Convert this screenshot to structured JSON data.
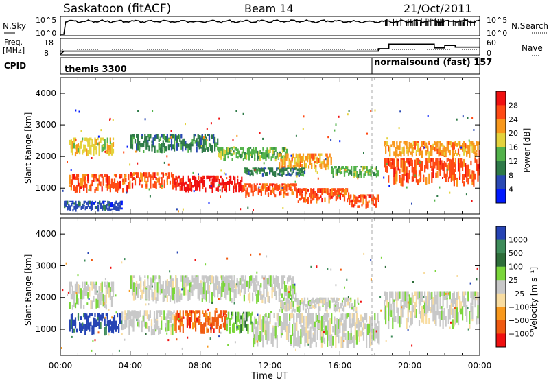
{
  "header": {
    "title": "Saskatoon (fitACF)",
    "beam": "Beam 14",
    "date": "21/Oct/2011"
  },
  "status_panels": {
    "nsky_label": "N.Sky",
    "nsky_ticks": [
      "10^5",
      "10^0"
    ],
    "nsky_right_ticks": [
      "10^5",
      "10^0"
    ],
    "nsearch_label": "N.Search",
    "freq_label_1": "Freq.",
    "freq_label_2": "[MHz]",
    "freq_ticks": [
      "18",
      "8"
    ],
    "nave_ticks": [
      "60",
      "0"
    ],
    "nave_label": "Nave",
    "cpid_label": "CPID",
    "cpid_segments": [
      {
        "name": "themis 3300",
        "start_hour": 0
      },
      {
        "name": "normalsound (fast) 157",
        "start_hour": 18.2
      }
    ],
    "nave_steps": [
      {
        "start": 0,
        "end": 18.2,
        "value": 12
      },
      {
        "start": 18.2,
        "end": 18.8,
        "value": 22
      },
      {
        "start": 18.8,
        "end": 21.4,
        "value": 40
      },
      {
        "start": 21.4,
        "end": 22.0,
        "value": 25
      },
      {
        "start": 22.0,
        "end": 22.6,
        "value": 35
      },
      {
        "start": 22.6,
        "end": 24,
        "value": 28
      }
    ]
  },
  "colors": {
    "power_scale": [
      "#0019ff",
      "#2a49b4",
      "#2e7a48",
      "#52b24a",
      "#e4d23c",
      "#f8981c",
      "#ff4a14",
      "#f01010"
    ],
    "velocity_scale": [
      "#2644b4",
      "#3e8c5a",
      "#2e6e3a",
      "#7ad63a",
      "#c8c8c8",
      "#f8dca0",
      "#f8981c",
      "#f05a10",
      "#f01010"
    ]
  },
  "chart_data": [
    {
      "type": "heatmap",
      "name": "Power",
      "xlabel": "",
      "ylabel": "Slant Range [km]",
      "xlim": [
        "00:00",
        "00:00"
      ],
      "ylim": [
        180,
        4500
      ],
      "x_ticks": [
        "00:00",
        "04:00",
        "08:00",
        "12:00",
        "16:00",
        "20:00",
        "00:00"
      ],
      "y_ticks": [
        "1000",
        "2000",
        "3000",
        "4000"
      ],
      "colorbar_label": "Power [dB]",
      "colorbar_ticks": [
        "4",
        "8",
        "12",
        "16",
        "20",
        "24",
        "28"
      ],
      "bands": [
        {
          "x": [
            0.5,
            4.0
          ],
          "y": [
            850,
            1450
          ],
          "level": 6
        },
        {
          "x": [
            4.0,
            6.5
          ],
          "y": [
            950,
            1500
          ],
          "level": 6
        },
        {
          "x": [
            6.5,
            10.5
          ],
          "y": [
            850,
            1400
          ],
          "level": 7
        },
        {
          "x": [
            10.5,
            13.5
          ],
          "y": [
            700,
            1150
          ],
          "level": 6
        },
        {
          "x": [
            13.5,
            16.5
          ],
          "y": [
            500,
            1000
          ],
          "level": 6
        },
        {
          "x": [
            16.5,
            18.2
          ],
          "y": [
            350,
            800
          ],
          "level": 6
        },
        {
          "x": [
            18.5,
            24
          ],
          "y": [
            1050,
            1950
          ],
          "level": 6
        },
        {
          "x": [
            18.5,
            24
          ],
          "y": [
            1950,
            2500
          ],
          "level": 5
        },
        {
          "x": [
            4.0,
            9.0
          ],
          "y": [
            2100,
            2700
          ],
          "level": 2
        },
        {
          "x": [
            9.0,
            13.0
          ],
          "y": [
            1850,
            2300
          ],
          "level": 3
        },
        {
          "x": [
            12.5,
            15.5
          ],
          "y": [
            1500,
            2100
          ],
          "level": 5
        },
        {
          "x": [
            10.5,
            14.0
          ],
          "y": [
            1350,
            1650
          ],
          "level": 2
        },
        {
          "x": [
            15.5,
            18.2
          ],
          "y": [
            1300,
            1700
          ],
          "level": 3
        },
        {
          "x": [
            0.5,
            3.0
          ],
          "y": [
            2000,
            2600
          ],
          "level": 4
        },
        {
          "x": [
            0.2,
            3.5
          ],
          "y": [
            250,
            600
          ],
          "level": 1
        }
      ]
    },
    {
      "type": "heatmap",
      "name": "Velocity",
      "xlabel": "Time UT",
      "ylabel": "Slant Range [km]",
      "xlim": [
        "00:00",
        "00:00"
      ],
      "ylim": [
        180,
        4500
      ],
      "x_ticks": [
        "00:00",
        "04:00",
        "08:00",
        "12:00",
        "16:00",
        "20:00",
        "00:00"
      ],
      "y_ticks": [
        "1000",
        "2000",
        "3000",
        "4000"
      ],
      "colorbar_label": "Velocity [m s⁻¹]",
      "colorbar_ticks": [
        "1000",
        "500",
        "100",
        "25",
        "−25",
        "−100",
        "−500",
        "−1000"
      ],
      "bands": [
        {
          "x": [
            0.5,
            3.5
          ],
          "y": [
            800,
            1500
          ],
          "level": 0
        },
        {
          "x": [
            3.5,
            6.5
          ],
          "y": [
            800,
            1600
          ],
          "level": 4
        },
        {
          "x": [
            6.5,
            9.5
          ],
          "y": [
            850,
            1600
          ],
          "level": 7
        },
        {
          "x": [
            9.5,
            11.0
          ],
          "y": [
            850,
            1550
          ],
          "level": 3
        },
        {
          "x": [
            11.0,
            18.2
          ],
          "y": [
            400,
            1500
          ],
          "level": 4
        },
        {
          "x": [
            4.0,
            13.5
          ],
          "y": [
            1800,
            2700
          ],
          "level": 4
        },
        {
          "x": [
            12.5,
            17.0
          ],
          "y": [
            1500,
            2000
          ],
          "level": 4
        },
        {
          "x": [
            18.5,
            24
          ],
          "y": [
            1000,
            2200
          ],
          "level": 4
        },
        {
          "x": [
            0.5,
            3.0
          ],
          "y": [
            1600,
            2500
          ],
          "level": 4
        }
      ]
    }
  ]
}
